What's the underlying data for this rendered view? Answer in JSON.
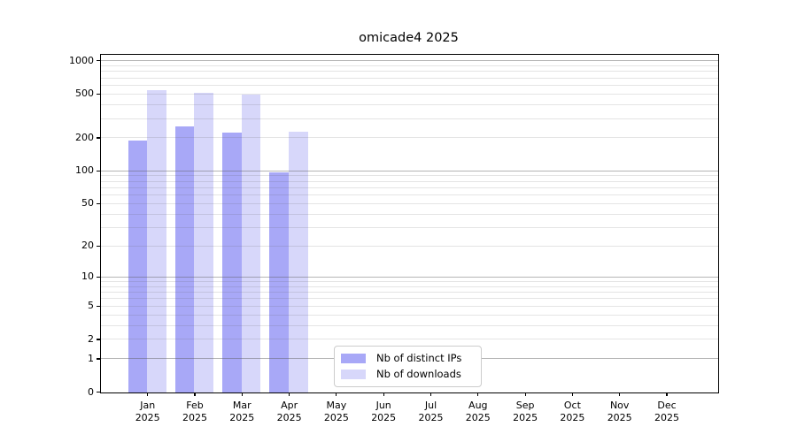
{
  "title": "omicade4 2025",
  "chart_data": {
    "type": "bar",
    "title": "omicade4 2025",
    "xlabel": "",
    "ylabel": "",
    "year": "2025",
    "categories": [
      "Jan",
      "Feb",
      "Mar",
      "Apr",
      "May",
      "Jun",
      "Jul",
      "Aug",
      "Sep",
      "Oct",
      "Nov",
      "Dec"
    ],
    "series": [
      {
        "name": "Nb of distinct IPs",
        "color": "#a8a8f7",
        "values": [
          190,
          255,
          224,
          97,
          null,
          null,
          null,
          null,
          null,
          null,
          null,
          null
        ]
      },
      {
        "name": "Nb of downloads",
        "color": "#d7d7fa",
        "values": [
          540,
          510,
          495,
          228,
          null,
          null,
          null,
          null,
          null,
          null,
          null,
          null
        ]
      }
    ],
    "y_scale": "log1p",
    "y_ticks": [
      0,
      1,
      2,
      5,
      10,
      20,
      50,
      100,
      200,
      500,
      1000
    ],
    "y_major_gridlines": [
      1,
      10,
      100,
      1000
    ],
    "ylim": [
      0,
      1130
    ],
    "grid": "horizontal",
    "legend_position": "lower center inside axes",
    "colors": {
      "major_grid": "rgba(90,90,90,0.45)",
      "minor_grid": "rgba(90,90,90,0.16)",
      "axis": "#000000",
      "background": "#ffffff"
    }
  }
}
